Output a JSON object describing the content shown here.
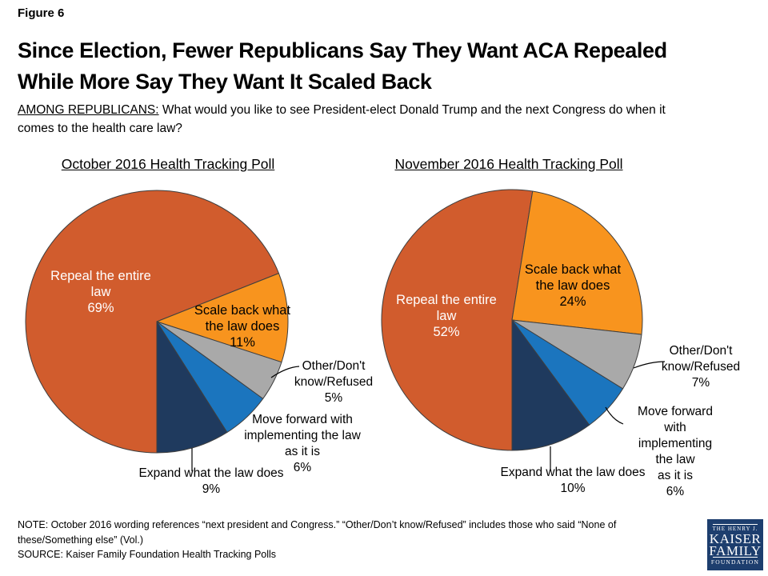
{
  "figure_label": "Figure 6",
  "title": "Since Election, Fewer Republicans Say They Want ACA Repealed\nWhile More Say They Want It Scaled Back",
  "subtitle": {
    "lead": "AMONG REPUBLICANS:",
    "rest": " What would you like to see President-elect Donald Trump and the next Congress do when it\ncomes to the health care law?"
  },
  "note": "NOTE: October 2016 wording references “next president and Congress.” “Other/Don’t know/Refused” includes those who said “None of\nthese/Something else” (Vol.)",
  "source": "SOURCE: Kaiser Family Foundation Health Tracking Polls",
  "logo": {
    "line1": "THE HENRY J.",
    "line2": "KAISER",
    "line3": "FAMILY",
    "line4": "FOUNDATION",
    "background": "#1D3E6E"
  },
  "colors": {
    "repeal": "#D15C2D",
    "scale_back": "#F8941E",
    "other": "#A9A9A9",
    "move_forward": "#1B75BE",
    "expand": "#1F3A5E",
    "slice_outline": "#3F3F3F",
    "leader_line": "#000000"
  },
  "chart_data": [
    {
      "type": "pie",
      "title": "October 2016 Health Tracking Poll",
      "categories": [
        "Repeal the entire law",
        "Scale back what the law does",
        "Other/Don't know/Refused",
        "Move forward with implementing the law as it is",
        "Expand what the law does"
      ],
      "values": [
        69,
        11,
        5,
        6,
        9
      ],
      "unit": "%",
      "slice_ids": [
        "repeal-entire-law",
        "scale-back-law",
        "other-dont-know-refused",
        "move-forward-implementing",
        "expand-law"
      ],
      "slice_colors": [
        "#D15C2D",
        "#F8941E",
        "#A9A9A9",
        "#1B75BE",
        "#1F3A5E"
      ],
      "start_angle_deg": 180,
      "direction": "clockwise",
      "legend_position": "labels-on-chart",
      "labels": [
        {
          "text": "Repeal the entire\nlaw\n69%",
          "placement": "inside"
        },
        {
          "text": "Scale back what\nthe law does\n11%",
          "placement": "inside"
        },
        {
          "text": "Other/Don't\nknow/Refused\n5%",
          "placement": "outside"
        },
        {
          "text": "Move forward with\nimplementing the law\nas it is\n6%",
          "placement": "outside"
        },
        {
          "text": "Expand what the law does\n9%",
          "placement": "outside"
        }
      ]
    },
    {
      "type": "pie",
      "title": "November 2016 Health Tracking Poll",
      "categories": [
        "Repeal the entire law",
        "Scale back what the law does",
        "Other/Don't know/Refused",
        "Move forward with implementing the law as it is",
        "Expand what the law does"
      ],
      "values": [
        52,
        24,
        7,
        6,
        10
      ],
      "unit": "%",
      "slice_ids": [
        "repeal-entire-law",
        "scale-back-law",
        "other-dont-know-refused",
        "move-forward-implementing",
        "expand-law"
      ],
      "slice_colors": [
        "#D15C2D",
        "#F8941E",
        "#A9A9A9",
        "#1B75BE",
        "#1F3A5E"
      ],
      "start_angle_deg": 180,
      "direction": "clockwise",
      "legend_position": "labels-on-chart",
      "labels": [
        {
          "text": "Repeal the entire\nlaw\n52%",
          "placement": "inside"
        },
        {
          "text": "Scale back what\nthe law does\n24%",
          "placement": "inside"
        },
        {
          "text": "Other/Don't\nknow/Refused\n7%",
          "placement": "outside"
        },
        {
          "text": "Move forward with\nimplementing the law\nas it is\n6%",
          "placement": "outside"
        },
        {
          "text": "Expand what the law does\n10%",
          "placement": "outside"
        }
      ]
    }
  ]
}
